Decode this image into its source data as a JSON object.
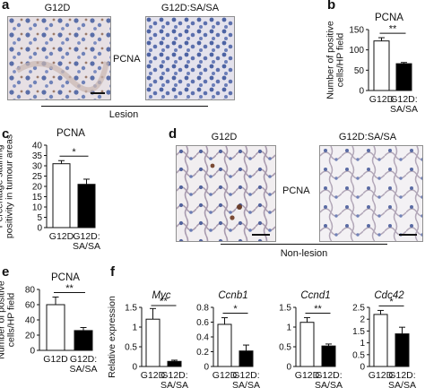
{
  "panels": {
    "a": {
      "letter": "a",
      "left_title": "G12D",
      "right_title": "G12D:SA/SA",
      "stain": "PCNA",
      "group": "Lesion"
    },
    "d": {
      "letter": "d",
      "left_title": "G12D",
      "right_title": "G12D:SA/SA",
      "stain": "PCNA",
      "group": "Non-lesion"
    },
    "b": {
      "letter": "b"
    },
    "c": {
      "letter": "c"
    },
    "e": {
      "letter": "e"
    },
    "f": {
      "letter": "f"
    }
  },
  "chart_data": [
    {
      "id": "b",
      "type": "bar",
      "title": "PCNA",
      "ylabel": "Number of positive cells/HP field",
      "categories": [
        "G12D",
        "G12D: SA/SA"
      ],
      "values": [
        122,
        66
      ],
      "errors": [
        8,
        3
      ],
      "ylim": [
        0,
        150
      ],
      "yticks": [
        "0",
        "50",
        "100",
        "150"
      ],
      "significance": "**",
      "fills": [
        "#ffffff",
        "#000000"
      ]
    },
    {
      "id": "c",
      "type": "bar",
      "title": "PCNA",
      "ylabel": "Percentage staining positivity in tumour areas",
      "categories": [
        "G12D",
        "G12D: SA/SA"
      ],
      "values": [
        31,
        21
      ],
      "errors": [
        1.5,
        2.5
      ],
      "ylim": [
        0,
        40
      ],
      "yticks": [
        "0",
        "5",
        "10",
        "15",
        "20",
        "25",
        "30",
        "35",
        "40"
      ],
      "significance": "*",
      "fills": [
        "#ffffff",
        "#000000"
      ]
    },
    {
      "id": "e",
      "type": "bar",
      "title": "PCNA",
      "ylabel": "Number of positive cells/HP field",
      "categories": [
        "G12D",
        "G12D: SA/SA"
      ],
      "values": [
        60,
        26
      ],
      "errors": [
        10,
        4
      ],
      "ylim": [
        0,
        80
      ],
      "yticks": [
        "0",
        "20",
        "40",
        "60",
        "80"
      ],
      "significance": "**",
      "fills": [
        "#ffffff",
        "#000000"
      ]
    },
    {
      "id": "f-myc",
      "type": "bar",
      "title": "Myc",
      "ylabel": "Relative expression",
      "categories": [
        "G12D",
        "G12D: SA/SA"
      ],
      "values": [
        1.2,
        0.13
      ],
      "errors": [
        0.27,
        0.03
      ],
      "ylim": [
        0,
        1.5
      ],
      "yticks": [
        "0",
        "0.5",
        "1",
        "1.5"
      ],
      "significance": "**",
      "fills": [
        "#ffffff",
        "#000000"
      ]
    },
    {
      "id": "f-ccnb1",
      "type": "bar",
      "title": "Ccnb1",
      "ylabel": "",
      "categories": [
        "G12D",
        "G12D: SA/SA"
      ],
      "values": [
        0.57,
        0.21
      ],
      "errors": [
        0.09,
        0.08
      ],
      "ylim": [
        0,
        0.8
      ],
      "yticks": [
        "0",
        "0.2",
        "0.4",
        "0.6",
        "0.8"
      ],
      "significance": "*",
      "fills": [
        "#ffffff",
        "#000000"
      ]
    },
    {
      "id": "f-ccnd1",
      "type": "bar",
      "title": "Ccnd1",
      "ylabel": "",
      "categories": [
        "G12D",
        "G12D: SA/SA"
      ],
      "values": [
        1.12,
        0.52
      ],
      "errors": [
        0.12,
        0.05
      ],
      "ylim": [
        0,
        1.5
      ],
      "yticks": [
        "0",
        "0.5",
        "1",
        "1.5"
      ],
      "significance": "**",
      "fills": [
        "#ffffff",
        "#000000"
      ]
    },
    {
      "id": "f-cdc42",
      "type": "bar",
      "title": "Cdc42",
      "ylabel": "",
      "categories": [
        "G12D",
        "G12D: SA/SA"
      ],
      "values": [
        2.2,
        1.38
      ],
      "errors": [
        0.17,
        0.28
      ],
      "ylim": [
        0,
        2.5
      ],
      "yticks": [
        "0",
        "0.5",
        "1",
        "1.5",
        "2",
        "2.5"
      ],
      "significance": "*",
      "fills": [
        "#ffffff",
        "#000000"
      ]
    }
  ]
}
